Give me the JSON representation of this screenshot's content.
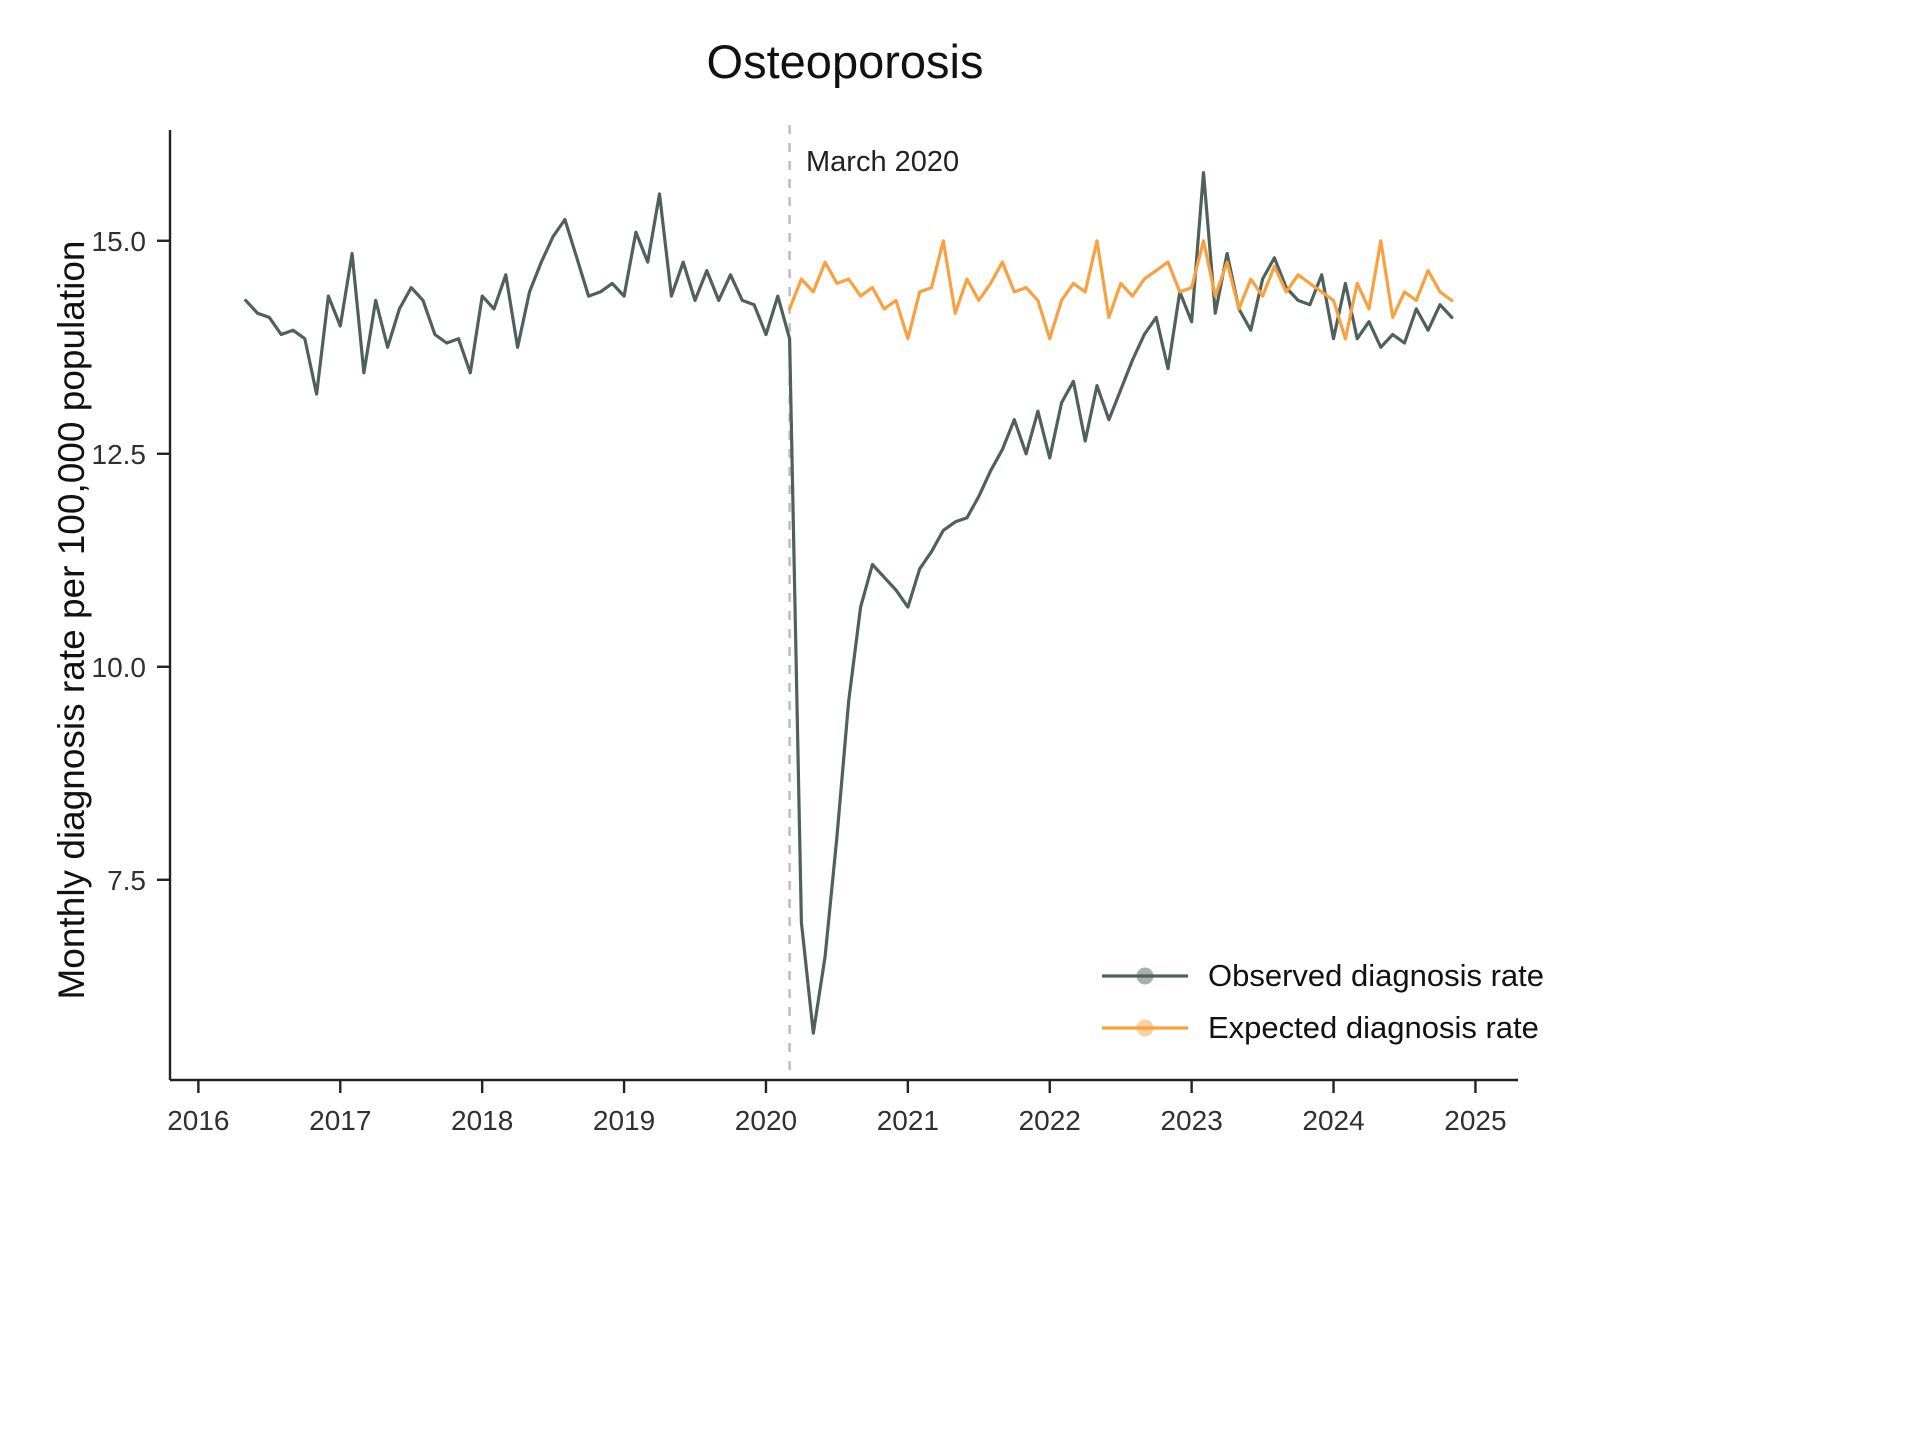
{
  "chart_data": {
    "type": "line",
    "title": "Osteoporosis",
    "xlabel": "",
    "ylabel": "Monthly diagnosis rate per 100,000 population",
    "grid": false,
    "background": "#ffffff",
    "xlim": [
      2015.8,
      2025.3
    ],
    "ylim": [
      5.15,
      16.3
    ],
    "x_ticks": [
      2016,
      2017,
      2018,
      2019,
      2020,
      2021,
      2022,
      2023,
      2024,
      2025
    ],
    "y_ticks": [
      7.5,
      10.0,
      12.5,
      15.0
    ],
    "y_tick_labels": [
      "7.5",
      "10.0",
      "12.5",
      "15.0"
    ],
    "annotation": {
      "text": "March 2020",
      "x": 2020.1667
    },
    "annotation_line_color": "#bdbdbd",
    "axis_color": "#222222",
    "legend_position": "bottom-right",
    "series": [
      {
        "name": "Observed diagnosis rate",
        "color": "#4e615d",
        "start_year": 2016,
        "start_month": 5,
        "values": [
          14.3,
          14.15,
          14.1,
          13.9,
          13.95,
          13.85,
          13.2,
          14.35,
          14.0,
          14.85,
          13.45,
          14.3,
          13.75,
          14.2,
          14.45,
          14.3,
          13.9,
          13.8,
          13.85,
          13.45,
          14.35,
          14.2,
          14.6,
          13.75,
          14.4,
          14.75,
          15.05,
          15.25,
          14.8,
          14.35,
          14.4,
          14.5,
          14.35,
          15.1,
          14.75,
          15.55,
          14.35,
          14.75,
          14.3,
          14.65,
          14.3,
          14.6,
          14.3,
          14.25,
          13.9,
          14.35,
          13.85,
          7.0,
          5.7,
          6.6,
          8.0,
          9.6,
          10.7,
          11.2,
          11.05,
          10.9,
          10.7,
          11.15,
          11.35,
          11.6,
          11.7,
          11.75,
          12.0,
          12.3,
          12.55,
          12.9,
          12.5,
          13.0,
          12.45,
          13.1,
          13.35,
          12.65,
          13.3,
          12.9,
          13.25,
          13.6,
          13.9,
          14.1,
          13.5,
          14.4,
          14.05,
          15.8,
          14.15,
          14.85,
          14.2,
          13.95,
          14.55,
          14.8,
          14.45,
          14.3,
          14.25,
          14.6,
          13.85,
          14.5,
          13.85,
          14.05,
          13.75,
          13.9,
          13.8,
          14.2,
          13.95,
          14.25,
          14.1
        ]
      },
      {
        "name": "Expected diagnosis rate",
        "color": "#f9a03f",
        "start_year": 2020,
        "start_month": 3,
        "values": [
          14.2,
          14.55,
          14.4,
          14.75,
          14.5,
          14.55,
          14.35,
          14.45,
          14.2,
          14.3,
          13.85,
          14.4,
          14.45,
          15.0,
          14.15,
          14.55,
          14.3,
          14.5,
          14.75,
          14.4,
          14.45,
          14.3,
          13.85,
          14.3,
          14.5,
          14.4,
          15.0,
          14.1,
          14.5,
          14.35,
          14.55,
          14.65,
          14.75,
          14.4,
          14.45,
          15.0,
          14.35,
          14.75,
          14.2,
          14.55,
          14.35,
          14.7,
          14.4,
          14.6,
          14.5,
          14.4,
          14.3,
          13.85,
          14.5,
          14.2,
          15.0,
          14.1,
          14.4,
          14.3,
          14.65,
          14.4,
          14.3
        ]
      }
    ]
  }
}
